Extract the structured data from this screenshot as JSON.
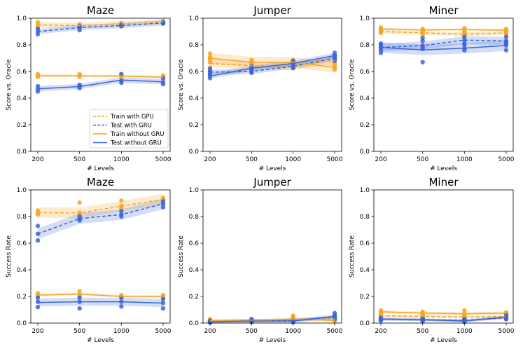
{
  "colors": {
    "gru": "#f5a623",
    "gru_test": "#3b64d8"
  },
  "legend": [
    {
      "label": "Train with GPU",
      "color": "#f5a623",
      "dash": true
    },
    {
      "label": "Test with GRU",
      "color": "#3b64d8",
      "dash": true
    },
    {
      "label": "Train without GRU",
      "color": "#f5a623",
      "dash": false
    },
    {
      "label": "Test without GRU",
      "color": "#3b64d8",
      "dash": false
    }
  ],
  "chart_data": [
    {
      "type": "line",
      "title": "Maze",
      "xlabel": "# Levels",
      "ylabel": "Score vs. Oracle",
      "categories": [
        "200",
        "500",
        "1000",
        "5000"
      ],
      "ylim": [
        0,
        1
      ],
      "yticks": [
        "0.0",
        "0.2",
        "0.4",
        "0.6",
        "0.8",
        "1.0"
      ],
      "legend": true,
      "series": [
        {
          "name": "Train with GPU",
          "color": "#f5a623",
          "dash": true,
          "values": [
            0.95,
            0.945,
            0.958,
            0.975
          ],
          "band": 0.02,
          "points": [
            [
              0.97,
              0.95,
              0.93
            ],
            [
              0.955,
              0.945,
              0.93
            ],
            [
              0.965,
              0.955,
              0.95
            ],
            [
              0.98,
              0.975,
              0.965
            ]
          ]
        },
        {
          "name": "Test with GRU",
          "color": "#3b64d8",
          "dash": true,
          "values": [
            0.9,
            0.93,
            0.945,
            0.965
          ],
          "band": 0.02,
          "points": [
            [
              0.92,
              0.9,
              0.88
            ],
            [
              0.94,
              0.93,
              0.91
            ],
            [
              0.95,
              0.945,
              0.94
            ],
            [
              0.97,
              0.965,
              0.96
            ]
          ]
        },
        {
          "name": "Train without GRU",
          "color": "#f5a623",
          "dash": false,
          "values": [
            0.568,
            0.567,
            0.566,
            0.557
          ],
          "band": 0.01,
          "points": [
            [
              0.58,
              0.57,
              0.56
            ],
            [
              0.58,
              0.57,
              0.56
            ],
            [
              0.58,
              0.565,
              0.555
            ],
            [
              0.57,
              0.555,
              0.545
            ]
          ]
        },
        {
          "name": "Test without GRU",
          "color": "#3b64d8",
          "dash": false,
          "values": [
            0.47,
            0.487,
            0.535,
            0.522
          ],
          "band": 0.02,
          "points": [
            [
              0.49,
              0.47,
              0.45
            ],
            [
              0.5,
              0.49,
              0.475
            ],
            [
              0.58,
              0.53,
              0.515
            ],
            [
              0.55,
              0.52,
              0.505
            ]
          ]
        }
      ]
    },
    {
      "type": "line",
      "title": "Jumper",
      "xlabel": "# Levels",
      "ylabel": "Score vs. Oracle",
      "categories": [
        "200",
        "500",
        "1000",
        "5000"
      ],
      "ylim": [
        0,
        1
      ],
      "yticks": [
        "0.0",
        "0.2",
        "0.4",
        "0.6",
        "0.8",
        "1.0"
      ],
      "legend": false,
      "series": [
        {
          "name": "Train with GPU",
          "color": "#f5a623",
          "dash": true,
          "values": [
            0.66,
            0.645,
            0.64,
            0.685
          ],
          "band": 0.03,
          "points": [
            [
              0.7,
              0.67,
              0.63
            ],
            [
              0.67,
              0.645,
              0.62
            ],
            [
              0.66,
              0.64,
              0.625
            ],
            [
              0.71,
              0.69,
              0.66
            ]
          ]
        },
        {
          "name": "Test with GRU",
          "color": "#3b64d8",
          "dash": true,
          "values": [
            0.595,
            0.6,
            0.64,
            0.7
          ],
          "band": 0.02,
          "points": [
            [
              0.62,
              0.6,
              0.58
            ],
            [
              0.615,
              0.6,
              0.59
            ],
            [
              0.665,
              0.64,
              0.625
            ],
            [
              0.72,
              0.7,
              0.68
            ]
          ]
        },
        {
          "name": "Train without GRU",
          "color": "#f5a623",
          "dash": false,
          "values": [
            0.7,
            0.67,
            0.67,
            0.63
          ],
          "band": 0.04,
          "points": [
            [
              0.735,
              0.71,
              0.69
            ],
            [
              0.685,
              0.67,
              0.655
            ],
            [
              0.685,
              0.67,
              0.655
            ],
            [
              0.645,
              0.63,
              0.615
            ]
          ]
        },
        {
          "name": "Test without GRU",
          "color": "#3b64d8",
          "dash": false,
          "values": [
            0.565,
            0.625,
            0.66,
            0.72
          ],
          "band": 0.02,
          "points": [
            [
              0.6,
              0.57,
              0.55
            ],
            [
              0.64,
              0.625,
              0.61
            ],
            [
              0.68,
              0.66,
              0.645
            ],
            [
              0.74,
              0.72,
              0.7
            ]
          ]
        }
      ]
    },
    {
      "type": "line",
      "title": "Miner",
      "xlabel": "# Levels",
      "ylabel": "Score vs. Oracle",
      "categories": [
        "200",
        "500",
        "1000",
        "5000"
      ],
      "ylim": [
        0,
        1
      ],
      "yticks": [
        "0.0",
        "0.2",
        "0.4",
        "0.6",
        "0.8",
        "1.0"
      ],
      "legend": false,
      "series": [
        {
          "name": "Train with GPU",
          "color": "#f5a623",
          "dash": true,
          "values": [
            0.9,
            0.89,
            0.88,
            0.89
          ],
          "band": 0.015,
          "points": [
            [
              0.915,
              0.9,
              0.89
            ],
            [
              0.9,
              0.89,
              0.875
            ],
            [
              0.895,
              0.88,
              0.87
            ],
            [
              0.9,
              0.89,
              0.88
            ]
          ]
        },
        {
          "name": "Test with GRU",
          "color": "#3b64d8",
          "dash": true,
          "values": [
            0.78,
            0.795,
            0.835,
            0.83
          ],
          "band": 0.03,
          "points": [
            [
              0.81,
              0.78,
              0.76
            ],
            [
              0.83,
              0.795,
              0.77
            ],
            [
              0.86,
              0.835,
              0.81
            ],
            [
              0.86,
              0.83,
              0.81
            ]
          ]
        },
        {
          "name": "Train without GRU",
          "color": "#f5a623",
          "dash": false,
          "values": [
            0.92,
            0.912,
            0.915,
            0.91
          ],
          "band": 0.008,
          "points": [
            [
              0.93,
              0.92,
              0.91
            ],
            [
              0.92,
              0.91,
              0.905
            ],
            [
              0.925,
              0.915,
              0.905
            ],
            [
              0.92,
              0.91,
              0.9
            ]
          ]
        },
        {
          "name": "Test without GRU",
          "color": "#3b64d8",
          "dash": false,
          "values": [
            0.78,
            0.762,
            0.775,
            0.795
          ],
          "band": 0.04,
          "points": [
            [
              0.8,
              0.78,
              0.74
            ],
            [
              0.85,
              0.78,
              0.67
            ],
            [
              0.8,
              0.775,
              0.76
            ],
            [
              0.82,
              0.795,
              0.76
            ]
          ]
        }
      ]
    },
    {
      "type": "line",
      "title": "Maze",
      "xlabel": "# Levels",
      "ylabel": "Success Rate",
      "categories": [
        "200",
        "500",
        "1000",
        "5000"
      ],
      "ylim": [
        0,
        1
      ],
      "yticks": [
        "0.0",
        "0.2",
        "0.4",
        "0.6",
        "0.8",
        "1.0"
      ],
      "legend": false,
      "series": [
        {
          "name": "Train with GPU",
          "color": "#f5a623",
          "dash": true,
          "values": [
            0.83,
            0.827,
            0.878,
            0.93
          ],
          "band": 0.04,
          "points": [
            [
              0.845,
              0.83,
              0.815
            ],
            [
              0.905,
              0.83,
              0.81
            ],
            [
              0.92,
              0.88,
              0.86
            ],
            [
              0.94,
              0.93,
              0.92
            ]
          ]
        },
        {
          "name": "Test with GRU",
          "color": "#3b64d8",
          "dash": true,
          "values": [
            0.67,
            0.785,
            0.815,
            0.895
          ],
          "band": 0.04,
          "points": [
            [
              0.73,
              0.67,
              0.62
            ],
            [
              0.8,
              0.785,
              0.77
            ],
            [
              0.84,
              0.815,
              0.8
            ],
            [
              0.915,
              0.895,
              0.87
            ]
          ]
        },
        {
          "name": "Train without GRU",
          "color": "#f5a623",
          "dash": false,
          "values": [
            0.21,
            0.218,
            0.2,
            0.2
          ],
          "band": 0.01,
          "points": [
            [
              0.225,
              0.21,
              0.2
            ],
            [
              0.24,
              0.218,
              0.2
            ],
            [
              0.21,
              0.2,
              0.195
            ],
            [
              0.21,
              0.2,
              0.19
            ]
          ]
        },
        {
          "name": "Test without GRU",
          "color": "#3b64d8",
          "dash": false,
          "values": [
            0.155,
            0.16,
            0.16,
            0.15
          ],
          "band": 0.03,
          "points": [
            [
              0.19,
              0.16,
              0.12
            ],
            [
              0.19,
              0.16,
              0.11
            ],
            [
              0.19,
              0.16,
              0.125
            ],
            [
              0.18,
              0.15,
              0.11
            ]
          ]
        }
      ]
    },
    {
      "type": "line",
      "title": "Jumper",
      "xlabel": "# Levels",
      "ylabel": "Success Rate",
      "categories": [
        "200",
        "500",
        "1000",
        "5000"
      ],
      "ylim": [
        0,
        1
      ],
      "yticks": [
        "0.0",
        "0.2",
        "0.4",
        "0.6",
        "0.8",
        "1.0"
      ],
      "legend": false,
      "series": [
        {
          "name": "Train with GPU",
          "color": "#f5a623",
          "dash": true,
          "values": [
            0.018,
            0.02,
            0.028,
            0.03
          ],
          "band": 0.01,
          "points": [
            [
              0.03,
              0.018,
              0.01
            ],
            [
              0.03,
              0.02,
              0.012
            ],
            [
              0.05,
              0.028,
              0.015
            ],
            [
              0.04,
              0.03,
              0.02
            ]
          ]
        },
        {
          "name": "Test with GRU",
          "color": "#3b64d8",
          "dash": true,
          "values": [
            0.012,
            0.018,
            0.02,
            0.045
          ],
          "band": 0.01,
          "points": [
            [
              0.02,
              0.012,
              0.006
            ],
            [
              0.03,
              0.018,
              0.01
            ],
            [
              0.03,
              0.02,
              0.01
            ],
            [
              0.06,
              0.045,
              0.03
            ]
          ]
        },
        {
          "name": "Train without GRU",
          "color": "#f5a623",
          "dash": false,
          "values": [
            0.015,
            0.018,
            0.03,
            0.02
          ],
          "band": 0.01,
          "points": [
            [
              0.02,
              0.015,
              0.01
            ],
            [
              0.025,
              0.018,
              0.01
            ],
            [
              0.055,
              0.03,
              0.02
            ],
            [
              0.03,
              0.02,
              0.015
            ]
          ]
        },
        {
          "name": "Test without GRU",
          "color": "#3b64d8",
          "dash": false,
          "values": [
            0.01,
            0.015,
            0.015,
            0.05
          ],
          "band": 0.015,
          "points": [
            [
              0.015,
              0.01,
              0.005
            ],
            [
              0.025,
              0.015,
              0.008
            ],
            [
              0.02,
              0.015,
              0.008
            ],
            [
              0.075,
              0.05,
              0.03
            ]
          ]
        }
      ]
    },
    {
      "type": "line",
      "title": "Miner",
      "xlabel": "# Levels",
      "ylabel": "Success Rate",
      "categories": [
        "200",
        "500",
        "1000",
        "5000"
      ],
      "ylim": [
        0,
        1
      ],
      "yticks": [
        "0.0",
        "0.2",
        "0.4",
        "0.6",
        "0.8",
        "1.0"
      ],
      "legend": false,
      "series": [
        {
          "name": "Train with GPU",
          "color": "#f5a623",
          "dash": true,
          "values": [
            0.055,
            0.05,
            0.045,
            0.05
          ],
          "band": 0.01,
          "points": [
            [
              0.07,
              0.055,
              0.04
            ],
            [
              0.06,
              0.05,
              0.04
            ],
            [
              0.06,
              0.045,
              0.035
            ],
            [
              0.06,
              0.05,
              0.04
            ]
          ]
        },
        {
          "name": "Test with GRU",
          "color": "#3b64d8",
          "dash": true,
          "values": [
            0.03,
            0.025,
            0.02,
            0.04
          ],
          "band": 0.01,
          "points": [
            [
              0.04,
              0.03,
              0.02
            ],
            [
              0.035,
              0.025,
              0.015
            ],
            [
              0.03,
              0.02,
              0.012
            ],
            [
              0.05,
              0.04,
              0.03
            ]
          ]
        },
        {
          "name": "Train without GRU",
          "color": "#f5a623",
          "dash": false,
          "values": [
            0.085,
            0.075,
            0.07,
            0.075
          ],
          "band": 0.012,
          "points": [
            [
              0.095,
              0.085,
              0.075
            ],
            [
              0.085,
              0.075,
              0.07
            ],
            [
              0.095,
              0.07,
              0.06
            ],
            [
              0.08,
              0.075,
              0.065
            ]
          ]
        },
        {
          "name": "Test without GRU",
          "color": "#3b64d8",
          "dash": false,
          "values": [
            0.03,
            0.025,
            0.015,
            0.045
          ],
          "band": 0.01,
          "points": [
            [
              0.04,
              0.03,
              0.02
            ],
            [
              0.035,
              0.025,
              0.015
            ],
            [
              0.025,
              0.015,
              0.01
            ],
            [
              0.06,
              0.045,
              0.03
            ]
          ]
        }
      ]
    }
  ]
}
